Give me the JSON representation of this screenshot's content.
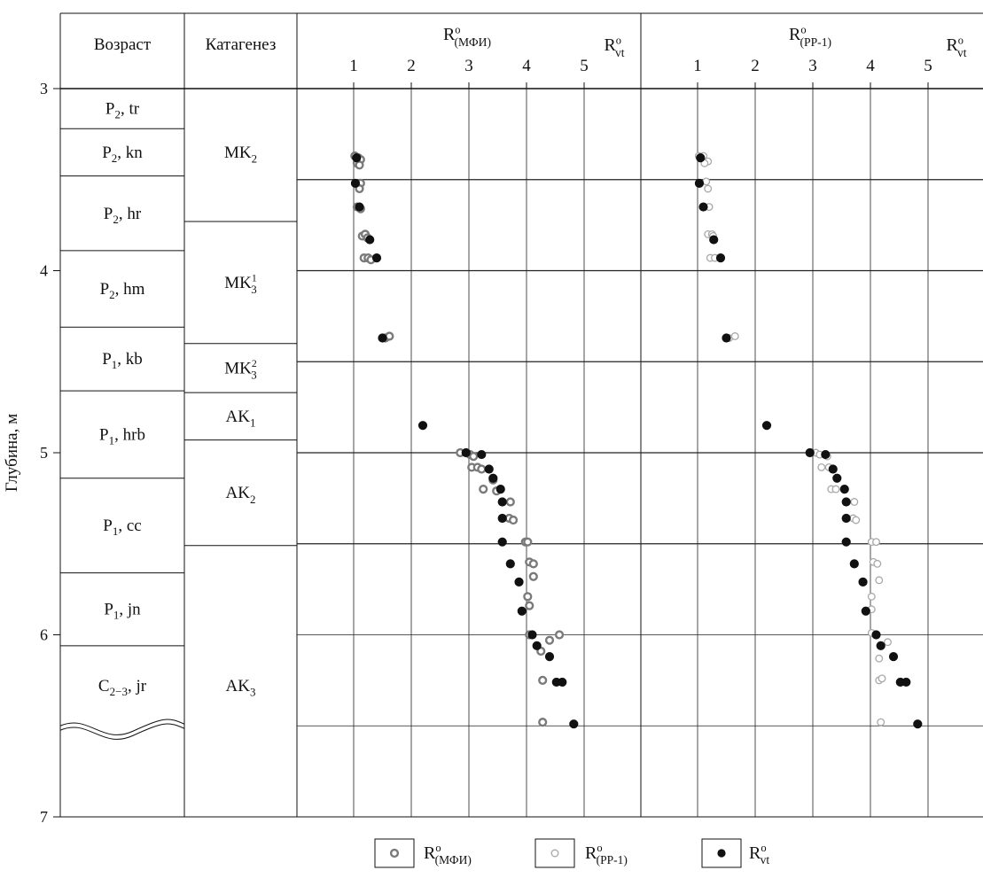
{
  "y_axis": {
    "label": "Глубина, м",
    "ticks": [
      3,
      4,
      5,
      6,
      7
    ]
  },
  "columns": {
    "age": "Возраст",
    "catagenesis": "Катагенез"
  },
  "age_units": [
    {
      "main": "P",
      "sub": "2",
      "tail": ", tr",
      "top": 3.0,
      "bottom": 3.22
    },
    {
      "main": "P",
      "sub": "2",
      "tail": ", kn",
      "top": 3.22,
      "bottom": 3.48
    },
    {
      "main": "P",
      "sub": "2",
      "tail": ", hr",
      "top": 3.48,
      "bottom": 3.89
    },
    {
      "main": "P",
      "sub": "2",
      "tail": ", hm",
      "top": 3.89,
      "bottom": 4.31
    },
    {
      "main": "P",
      "sub": "1",
      "tail": ", kb",
      "top": 4.31,
      "bottom": 4.66
    },
    {
      "main": "P",
      "sub": "1",
      "tail": ", hrb",
      "top": 4.66,
      "bottom": 5.14
    },
    {
      "main": "P",
      "sub": "1",
      "tail": ", cc",
      "top": 5.14,
      "bottom": 5.66
    },
    {
      "main": "P",
      "sub": "1",
      "tail": ", jn",
      "top": 5.66,
      "bottom": 6.06
    },
    {
      "main": "C",
      "sub": "2−3",
      "tail": ", jr",
      "top": 6.06,
      "bottom": 7.0
    }
  ],
  "catagenesis_zones": [
    {
      "main": "MK",
      "sub": "2",
      "sup": "",
      "top": 3.0,
      "bottom": 3.73
    },
    {
      "main": "MK",
      "sub": "3",
      "sup": "1",
      "top": 3.73,
      "bottom": 4.4
    },
    {
      "main": "MK",
      "sub": "3",
      "sup": "2",
      "top": 4.4,
      "bottom": 4.67
    },
    {
      "main": "AK",
      "sub": "1",
      "sup": "",
      "top": 4.67,
      "bottom": 4.93
    },
    {
      "main": "AK",
      "sub": "2",
      "sup": "",
      "top": 4.93,
      "bottom": 5.51
    },
    {
      "main": "AK",
      "sub": "3",
      "sup": "",
      "top": 5.51,
      "bottom": 7.0
    }
  ],
  "series_labels": {
    "mfi": {
      "main": "R",
      "sup": "o",
      "sub": "(МФИ)"
    },
    "pp1": {
      "main": "R",
      "sup": "o",
      "sub": "(PP-1)"
    },
    "vt": {
      "main": "R",
      "sup": "o",
      "sub": "vt"
    }
  },
  "colors": {
    "mfi_stroke": "#7a7a7a",
    "pp1_stroke": "#a8a8a8",
    "vt_fill": "#111111"
  },
  "chart_data": {
    "type": "scatter",
    "y_range": [
      3,
      7
    ],
    "y_direction": "down",
    "x_range": [
      0.2,
      5.9
    ],
    "x_ticks": [
      1,
      2,
      3,
      4,
      5
    ],
    "panels": [
      {
        "id": "mfi",
        "title_series": "mfi",
        "right_label": "vt",
        "series": [
          "mfi",
          "vt"
        ]
      },
      {
        "id": "pp1",
        "title_series": "pp1",
        "right_label": "vt",
        "series": [
          "pp1",
          "vt"
        ]
      }
    ],
    "series": {
      "vt": [
        [
          1.05,
          3.38
        ],
        [
          1.03,
          3.52
        ],
        [
          1.1,
          3.65
        ],
        [
          1.28,
          3.83
        ],
        [
          1.4,
          3.93
        ],
        [
          1.5,
          4.37
        ],
        [
          2.2,
          4.85
        ],
        [
          2.95,
          5.0
        ],
        [
          3.22,
          5.01
        ],
        [
          3.35,
          5.09
        ],
        [
          3.42,
          5.14
        ],
        [
          3.55,
          5.2
        ],
        [
          3.58,
          5.27
        ],
        [
          3.58,
          5.36
        ],
        [
          3.58,
          5.49
        ],
        [
          3.72,
          5.61
        ],
        [
          3.87,
          5.71
        ],
        [
          3.92,
          5.87
        ],
        [
          4.1,
          6.0
        ],
        [
          4.18,
          6.06
        ],
        [
          4.4,
          6.12
        ],
        [
          4.52,
          6.26
        ],
        [
          4.62,
          6.26
        ],
        [
          4.82,
          6.49
        ]
      ],
      "mfi": [
        [
          1.02,
          3.37
        ],
        [
          1.08,
          3.38
        ],
        [
          1.12,
          3.39
        ],
        [
          1.06,
          3.41
        ],
        [
          1.1,
          3.42
        ],
        [
          1.12,
          3.52
        ],
        [
          1.1,
          3.55
        ],
        [
          1.06,
          3.65
        ],
        [
          1.12,
          3.66
        ],
        [
          1.15,
          3.81
        ],
        [
          1.2,
          3.8
        ],
        [
          1.24,
          3.82
        ],
        [
          1.18,
          3.93
        ],
        [
          1.25,
          3.93
        ],
        [
          1.3,
          3.94
        ],
        [
          1.55,
          4.37
        ],
        [
          1.62,
          4.36
        ],
        [
          2.85,
          5.0
        ],
        [
          3.02,
          5.01
        ],
        [
          3.08,
          5.02
        ],
        [
          3.05,
          5.08
        ],
        [
          3.15,
          5.08
        ],
        [
          3.22,
          5.09
        ],
        [
          3.42,
          5.15
        ],
        [
          3.25,
          5.2
        ],
        [
          3.48,
          5.21
        ],
        [
          3.72,
          5.27
        ],
        [
          3.7,
          5.36
        ],
        [
          3.77,
          5.37
        ],
        [
          3.98,
          5.49
        ],
        [
          4.02,
          5.49
        ],
        [
          4.05,
          5.6
        ],
        [
          4.12,
          5.61
        ],
        [
          4.12,
          5.68
        ],
        [
          4.02,
          5.79
        ],
        [
          4.05,
          5.84
        ],
        [
          4.05,
          6.0
        ],
        [
          4.57,
          6.0
        ],
        [
          4.4,
          6.03
        ],
        [
          4.25,
          6.09
        ],
        [
          4.28,
          6.25
        ],
        [
          4.28,
          6.48
        ]
      ],
      "pp1": [
        [
          1.02,
          3.37
        ],
        [
          1.1,
          3.37
        ],
        [
          1.18,
          3.4
        ],
        [
          1.12,
          3.41
        ],
        [
          1.15,
          3.51
        ],
        [
          1.18,
          3.55
        ],
        [
          1.12,
          3.65
        ],
        [
          1.2,
          3.65
        ],
        [
          1.18,
          3.8
        ],
        [
          1.25,
          3.8
        ],
        [
          1.27,
          3.81
        ],
        [
          1.22,
          3.93
        ],
        [
          1.3,
          3.93
        ],
        [
          1.55,
          4.37
        ],
        [
          1.65,
          4.36
        ],
        [
          3.05,
          5.0
        ],
        [
          3.12,
          5.01
        ],
        [
          3.25,
          5.02
        ],
        [
          3.15,
          5.08
        ],
        [
          3.28,
          5.08
        ],
        [
          3.42,
          5.14
        ],
        [
          3.32,
          5.2
        ],
        [
          3.4,
          5.2
        ],
        [
          3.72,
          5.27
        ],
        [
          3.7,
          5.36
        ],
        [
          3.75,
          5.37
        ],
        [
          4.02,
          5.49
        ],
        [
          4.1,
          5.49
        ],
        [
          4.05,
          5.6
        ],
        [
          4.12,
          5.61
        ],
        [
          4.15,
          5.7
        ],
        [
          4.02,
          5.79
        ],
        [
          4.02,
          5.86
        ],
        [
          4.02,
          5.99
        ],
        [
          4.3,
          6.04
        ],
        [
          4.15,
          6.13
        ],
        [
          4.15,
          6.25
        ],
        [
          4.2,
          6.24
        ],
        [
          4.18,
          6.48
        ]
      ]
    }
  }
}
